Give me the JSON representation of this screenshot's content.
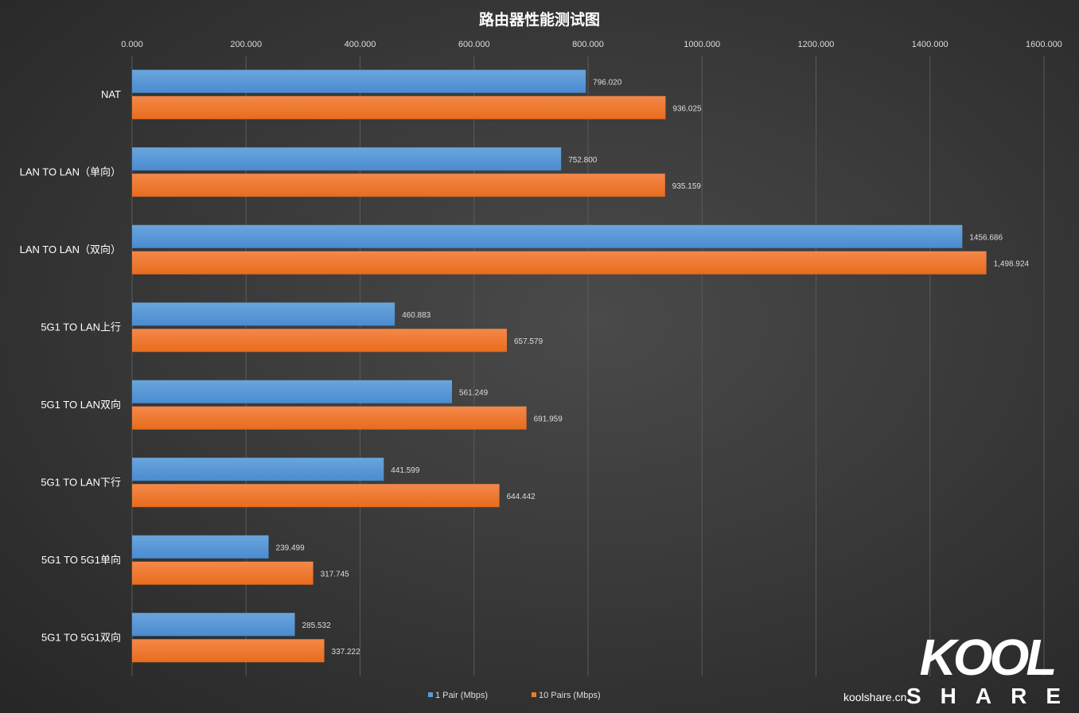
{
  "chart_data": {
    "type": "bar",
    "orientation": "horizontal",
    "title": "路由器性能测试图",
    "categories": [
      "NAT",
      "LAN TO LAN（单向）",
      "LAN TO LAN（双向）",
      "5G1 TO LAN上行",
      "5G1 TO LAN双向",
      "5G1 TO LAN下行",
      "5G1 TO 5G1单向",
      "5G1 TO 5G1双向"
    ],
    "series": [
      {
        "name": "1 Pair (Mbps)",
        "color": "#5b9bd5",
        "values": [
          796.02,
          752.8,
          1456.686,
          460.883,
          561.249,
          441.599,
          239.499,
          285.532
        ],
        "labels": [
          "796.020",
          "752.800",
          "1456.686",
          "460.883",
          "561.249",
          "441.599",
          "239.499",
          "285.532"
        ]
      },
      {
        "name": "10  Pairs  (Mbps)",
        "color": "#ed7d31",
        "values": [
          936.025,
          935.159,
          1498.924,
          657.579,
          691.959,
          644.442,
          317.745,
          337.222
        ],
        "labels": [
          "936.025",
          "935.159",
          "1,498.924",
          "657.579",
          "691.959",
          "644.442",
          "317.745",
          "337.222"
        ]
      }
    ],
    "xlim": [
      0,
      1600
    ],
    "xticks": [
      "0.000",
      "200.000",
      "400.000",
      "600.000",
      "800.000",
      "1000.000",
      "1200.000",
      "1400.000",
      "1600.000"
    ],
    "axis_position": "top",
    "grid": true,
    "legend": "bottom"
  },
  "watermark": {
    "logo_text": "KOOL SHARE",
    "site": "koolshare.cn"
  }
}
